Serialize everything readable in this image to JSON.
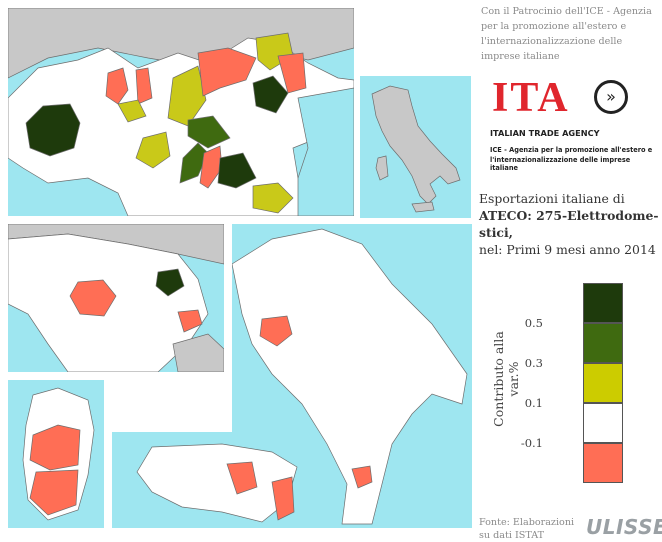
{
  "patronage": "Con il Patrocinio dell'ICE - Agenzia per la promozione all'estero e l'internazionalizzazione delle imprese italiane",
  "logo": {
    "mark": "ITA",
    "name": "ITALIAN TRADE AGENCY",
    "tagline_1": "ICE - Agenzia per la promozione all'estero e",
    "tagline_2": "l'internazionalizzazione delle imprese italiane",
    "colors": {
      "green": "#1f8a3a",
      "red": "#e0262d",
      "black": "#222222"
    }
  },
  "title": {
    "line1": "Esportazioni italiane di",
    "line2": "ATECO: 275-Elettrodome-",
    "line3": "stici,",
    "line4": "nel: Primi 9 mesi anno 2014"
  },
  "legend": {
    "label": "Contributo alla var.%",
    "ticks": [
      "0.5",
      "0.3",
      "0.1",
      "-0.1"
    ],
    "colors": [
      "#1e3a0c",
      "#3f6a10",
      "#cccc00",
      "#ffffff",
      "#ff6e55"
    ]
  },
  "map": {
    "colors": {
      "sea": "#9ee6f0",
      "land": "#ffffff",
      "foreign": "#c8c8c8",
      "border": "#6d6d6d",
      "neg": "#ff6e55",
      "low": "#c9c919",
      "mid": "#3f6a10",
      "high": "#1e3a0c"
    }
  },
  "source": {
    "line1": "Fonte: Elaborazioni",
    "line2": "su dati ISTAT"
  },
  "brand": "ULISSE"
}
